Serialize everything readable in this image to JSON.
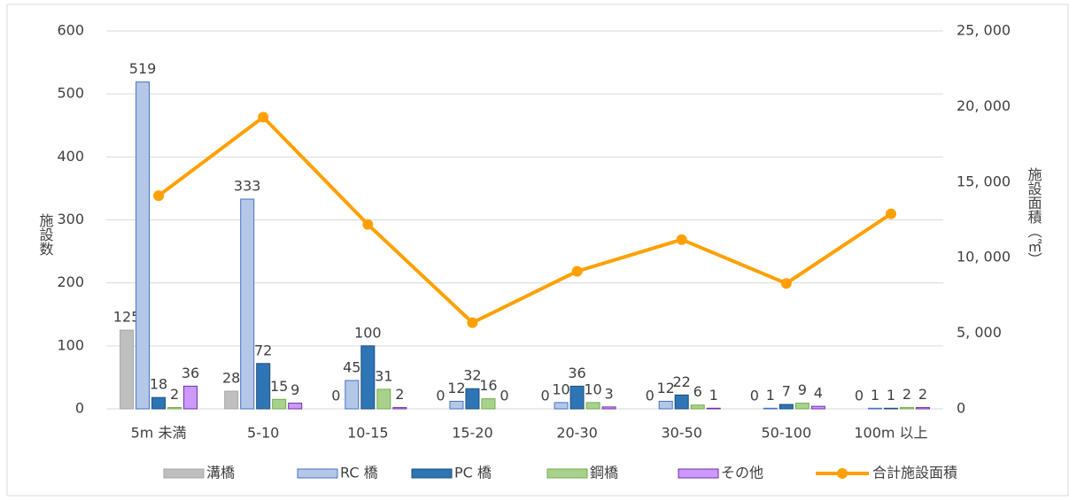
{
  "chart_data": {
    "type": "bar",
    "categories": [
      "5m 未満",
      "5-10",
      "10-15",
      "15-20",
      "20-30",
      "30-50",
      "50-100",
      "100m 以上"
    ],
    "series": [
      {
        "name": "溝橋",
        "color": "#bfbfbf",
        "stroke": "#a6a6a6",
        "values": [
          125,
          28,
          0,
          0,
          0,
          0,
          0,
          0
        ]
      },
      {
        "name": "RC 橋",
        "color": "#b4c7e7",
        "stroke": "#4472c4",
        "values": [
          519,
          333,
          45,
          12,
          10,
          12,
          1,
          1
        ]
      },
      {
        "name": "PC 橋",
        "color": "#2e75b6",
        "stroke": "#1f4e79",
        "values": [
          18,
          72,
          100,
          32,
          36,
          22,
          7,
          1
        ]
      },
      {
        "name": "鋼橋",
        "color": "#a9d18e",
        "stroke": "#70ad47",
        "values": [
          2,
          15,
          31,
          16,
          10,
          6,
          9,
          2
        ]
      },
      {
        "name": "その他",
        "color": "#cc99ff",
        "stroke": "#7030a0",
        "values": [
          36,
          9,
          2,
          0,
          3,
          1,
          4,
          2
        ]
      },
      {
        "name": "合計施設面積",
        "type": "line",
        "axis": "y2",
        "color": "#ffa000",
        "values": [
          14100,
          19300,
          12200,
          5700,
          9100,
          11200,
          8300,
          12900
        ]
      }
    ],
    "y_label": "施設数",
    "y2_label": "施設面積（㎡）",
    "ylim": [
      0,
      600
    ],
    "yticks": [
      0,
      100,
      200,
      300,
      400,
      500,
      600
    ],
    "y2lim": [
      0,
      25000
    ],
    "y2ticks": [
      0,
      {
        "value": 5000,
        "label": "5, 000"
      },
      {
        "value": 10000,
        "label": "10, 000"
      },
      {
        "value": 15000,
        "label": "15, 000"
      },
      {
        "value": 20000,
        "label": "20, 000"
      },
      {
        "value": 25000,
        "label": "25, 000"
      }
    ],
    "grid": true,
    "legend": "bottom"
  }
}
